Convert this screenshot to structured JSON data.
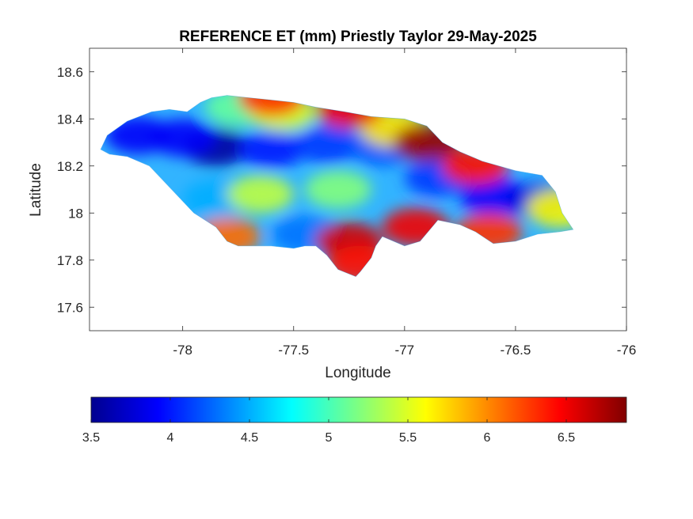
{
  "chart_data": {
    "type": "heatmap",
    "title": "REFERENCE ET (mm) Priestly Taylor 29-May-2025",
    "xlabel": "Longitude",
    "ylabel": "Latitude",
    "xlim": [
      -78.42,
      -76
    ],
    "ylim": [
      17.5,
      18.7
    ],
    "xticks": [
      -78,
      -77.5,
      -77,
      -76.5,
      -76
    ],
    "xtick_labels": [
      "-78",
      "-77.5",
      "-77",
      "-76.5",
      "-76"
    ],
    "yticks": [
      17.6,
      17.8,
      18,
      18.2,
      18.4,
      18.6
    ],
    "ytick_labels": [
      "17.6",
      "17.8",
      "18",
      "18.2",
      "18.4",
      "18.6"
    ],
    "grid": false,
    "colormap": "jet",
    "colorbar": {
      "orientation": "horizontal",
      "location": "below",
      "clim": [
        3.5,
        6.88
      ],
      "ticks": [
        3.5,
        4,
        4.5,
        5,
        5.5,
        6,
        6.5
      ],
      "tick_labels": [
        "3.5",
        "4",
        "4.5",
        "5",
        "5.5",
        "6",
        "6.5"
      ]
    },
    "region_outline": [
      [
        -78.37,
        18.27
      ],
      [
        -78.34,
        18.33
      ],
      [
        -78.25,
        18.39
      ],
      [
        -78.14,
        18.43
      ],
      [
        -78.06,
        18.44
      ],
      [
        -77.98,
        18.43
      ],
      [
        -77.92,
        18.47
      ],
      [
        -77.87,
        18.49
      ],
      [
        -77.8,
        18.5
      ],
      [
        -77.7,
        18.49
      ],
      [
        -77.6,
        18.48
      ],
      [
        -77.5,
        18.47
      ],
      [
        -77.4,
        18.45
      ],
      [
        -77.27,
        18.43
      ],
      [
        -77.15,
        18.41
      ],
      [
        -77.0,
        18.4
      ],
      [
        -76.9,
        18.37
      ],
      [
        -76.83,
        18.3
      ],
      [
        -76.75,
        18.26
      ],
      [
        -76.65,
        18.22
      ],
      [
        -76.5,
        18.18
      ],
      [
        -76.38,
        18.16
      ],
      [
        -76.32,
        18.09
      ],
      [
        -76.29,
        18.0
      ],
      [
        -76.24,
        17.93
      ],
      [
        -76.3,
        17.92
      ],
      [
        -76.4,
        17.91
      ],
      [
        -76.5,
        17.88
      ],
      [
        -76.6,
        17.87
      ],
      [
        -76.68,
        17.92
      ],
      [
        -76.75,
        17.95
      ],
      [
        -76.85,
        17.97
      ],
      [
        -76.93,
        17.88
      ],
      [
        -77.0,
        17.86
      ],
      [
        -77.1,
        17.9
      ],
      [
        -77.13,
        17.86
      ],
      [
        -77.15,
        17.81
      ],
      [
        -77.2,
        17.75
      ],
      [
        -77.22,
        17.73
      ],
      [
        -77.3,
        17.76
      ],
      [
        -77.35,
        17.82
      ],
      [
        -77.4,
        17.86
      ],
      [
        -77.45,
        17.86
      ],
      [
        -77.5,
        17.85
      ],
      [
        -77.6,
        17.86
      ],
      [
        -77.75,
        17.86
      ],
      [
        -77.8,
        17.88
      ],
      [
        -77.85,
        17.94
      ],
      [
        -77.95,
        18.0
      ],
      [
        -78.05,
        18.1
      ],
      [
        -78.15,
        18.2
      ],
      [
        -78.25,
        18.24
      ],
      [
        -78.33,
        18.25
      ],
      [
        -78.37,
        18.27
      ]
    ],
    "value_hotspots": [
      {
        "lon": -77.85,
        "lat": 18.28,
        "value": 3.6
      },
      {
        "lon": -78.2,
        "lat": 18.33,
        "value": 3.9
      },
      {
        "lon": -78.0,
        "lat": 18.32,
        "value": 3.9
      },
      {
        "lon": -77.6,
        "lat": 18.27,
        "value": 4.0
      },
      {
        "lon": -77.35,
        "lat": 18.29,
        "value": 4.1
      },
      {
        "lon": -77.1,
        "lat": 18.28,
        "value": 4.2
      },
      {
        "lon": -76.85,
        "lat": 18.15,
        "value": 4.1
      },
      {
        "lon": -76.6,
        "lat": 18.07,
        "value": 3.9
      },
      {
        "lon": -76.38,
        "lat": 18.05,
        "value": 3.8
      },
      {
        "lon": -77.85,
        "lat": 18.06,
        "value": 4.5
      },
      {
        "lon": -77.45,
        "lat": 17.91,
        "value": 4.3
      },
      {
        "lon": -77.65,
        "lat": 18.08,
        "value": 5.4
      },
      {
        "lon": -77.3,
        "lat": 18.1,
        "value": 5.2
      },
      {
        "lon": -77.75,
        "lat": 18.45,
        "value": 5.1
      },
      {
        "lon": -77.55,
        "lat": 18.43,
        "value": 5.5
      },
      {
        "lon": -77.05,
        "lat": 18.36,
        "value": 5.7
      },
      {
        "lon": -77.6,
        "lat": 18.49,
        "value": 6.3
      },
      {
        "lon": -77.25,
        "lat": 18.44,
        "value": 6.5
      },
      {
        "lon": -76.9,
        "lat": 18.3,
        "value": 6.8
      },
      {
        "lon": -76.68,
        "lat": 18.2,
        "value": 6.4
      },
      {
        "lon": -77.25,
        "lat": 17.88,
        "value": 6.6
      },
      {
        "lon": -77.2,
        "lat": 17.78,
        "value": 6.4
      },
      {
        "lon": -76.95,
        "lat": 17.94,
        "value": 6.5
      },
      {
        "lon": -76.62,
        "lat": 17.92,
        "value": 6.3
      },
      {
        "lon": -76.3,
        "lat": 18.02,
        "value": 5.6
      },
      {
        "lon": -77.8,
        "lat": 17.9,
        "value": 6.1
      }
    ]
  }
}
